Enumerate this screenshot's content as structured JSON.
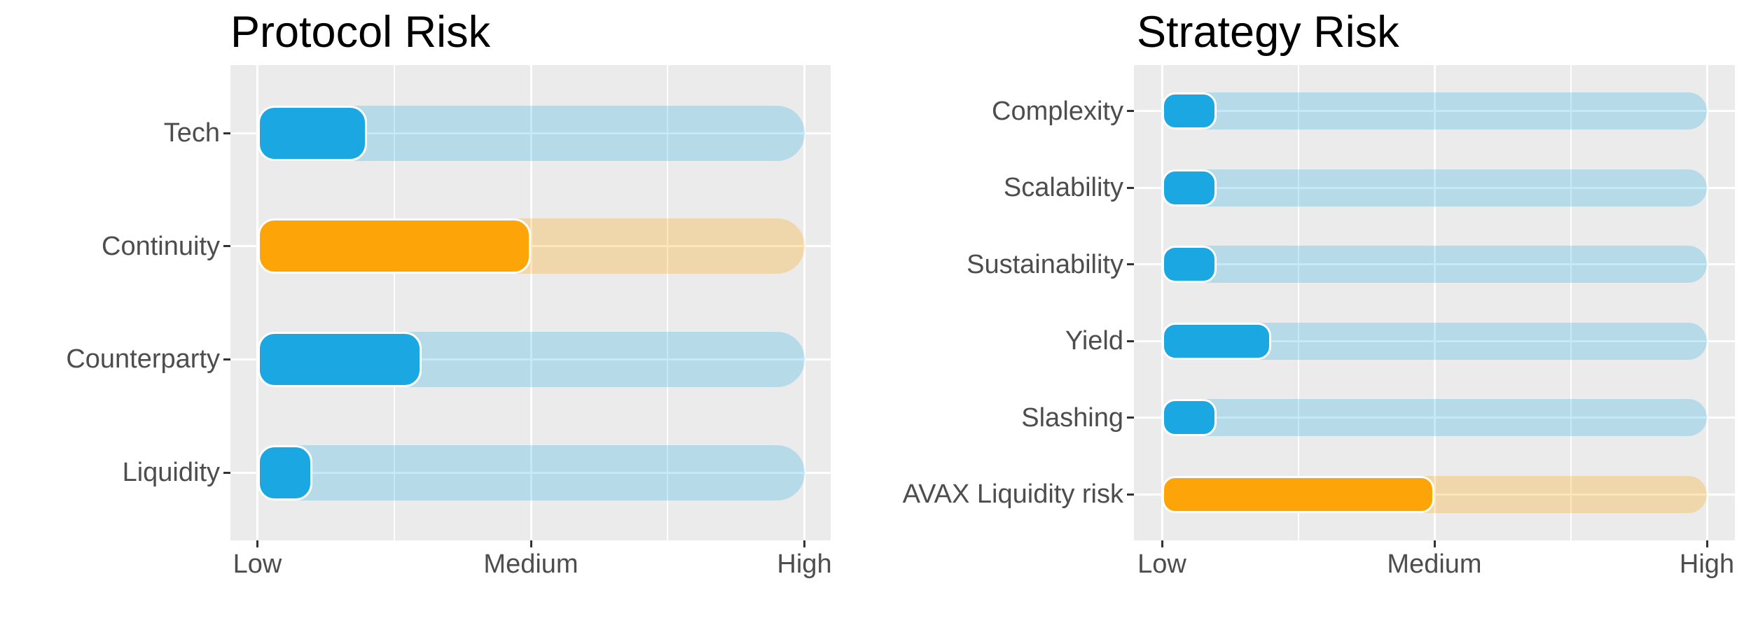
{
  "page": {
    "background": "#FFFFFF",
    "description": "Two horizontal risk-level bar charts side by side"
  },
  "palette": {
    "blue": "#1BA7E2",
    "orange": "#FCA408",
    "blue_track": "rgba(27,167,226,0.25)",
    "orange_track": "rgba(252,164,8,0.28)",
    "panel_bg": "#EBEBEB",
    "gridline": "#FFFFFF",
    "axis_text": "#4D4D4D",
    "tick_mark": "#333333",
    "title_text": "#000000"
  },
  "chart_data": [
    {
      "type": "bar",
      "orientation": "horizontal",
      "title": "Protocol Risk",
      "categories": [
        "Tech",
        "Continuity",
        "Counterparty",
        "Liquidity"
      ],
      "values": [
        0.2,
        0.5,
        0.3,
        0.1
      ],
      "scores_0_to_10": [
        2,
        5,
        3,
        1
      ],
      "colors": [
        "blue",
        "orange",
        "blue",
        "blue"
      ],
      "x_tick_labels": [
        "Low",
        "Medium",
        "High"
      ],
      "xlabel": "",
      "ylabel": "",
      "x_range": [
        "Low",
        "High"
      ],
      "grid": true,
      "legend": false,
      "track_note": "each category has a full-length pale track from Low to High behind the value bar"
    },
    {
      "type": "bar",
      "orientation": "horizontal",
      "title": "Strategy Risk",
      "categories": [
        "Complexity",
        "Scalability",
        "Sustainability",
        "Yield",
        "Slashing",
        "AVAX Liquidity risk"
      ],
      "values": [
        0.1,
        0.1,
        0.1,
        0.2,
        0.1,
        0.5
      ],
      "scores_0_to_10": [
        1,
        1,
        1,
        2,
        1,
        5
      ],
      "colors": [
        "blue",
        "blue",
        "blue",
        "blue",
        "blue",
        "orange"
      ],
      "x_tick_labels": [
        "Low",
        "Medium",
        "High"
      ],
      "xlabel": "",
      "ylabel": "",
      "x_range": [
        "Low",
        "High"
      ],
      "grid": true,
      "legend": false,
      "track_note": "each category has a full-length pale track from Low to High behind the value bar"
    }
  ]
}
